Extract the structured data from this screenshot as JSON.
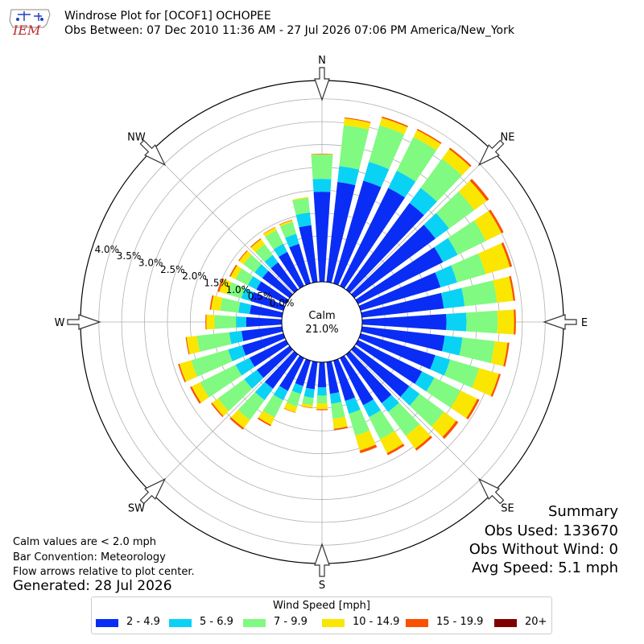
{
  "header": {
    "title": "Windrose Plot for [OCOF1] OCHOPEE",
    "subtitle": "Obs Between: 07 Dec 2010 11:36 AM - 27 Jul 2026 07:06 PM America/New_York",
    "logo_text": "IEM"
  },
  "footnotes": {
    "calm_note": "Calm values are < 2.0 mph",
    "bar_convention": "Bar Convention: Meteorology",
    "flow_note": "Flow arrows relative to plot center.",
    "generated": "Generated: 28 Jul 2026"
  },
  "summary": {
    "heading": "Summary",
    "obs_used": "Obs Used: 133670",
    "obs_without_wind": "Obs Without Wind: 0",
    "avg_speed": "Avg Speed: 5.1 mph"
  },
  "chart_data": {
    "type": "windrose",
    "calm_label": "Calm",
    "calm_value": "21.0%",
    "calm_percent": 21.0,
    "direction_labels": [
      "N",
      "NE",
      "E",
      "SE",
      "S",
      "SW",
      "W",
      "NW"
    ],
    "radial_tick_labels": [
      "0.0%",
      "0.5%",
      "1.0%",
      "1.5%",
      "2.0%",
      "2.5%",
      "3.0%",
      "3.5%",
      "4.0%"
    ],
    "rmax": 4.4,
    "legend_title": "Wind Speed [mph]",
    "bins": [
      {
        "name": "2 - 4.9",
        "color": "#0a2df5"
      },
      {
        "name": "5 - 6.9",
        "color": "#0ad2f5"
      },
      {
        "name": "7 - 9.9",
        "color": "#80fa80"
      },
      {
        "name": "10 - 14.9",
        "color": "#fae600"
      },
      {
        "name": "15 - 19.9",
        "color": "#fa5000"
      },
      {
        "name": "20+",
        "color": "#800000"
      }
    ],
    "directions_deg": [
      0,
      10,
      20,
      30,
      40,
      50,
      60,
      70,
      80,
      90,
      100,
      110,
      120,
      130,
      140,
      150,
      160,
      170,
      180,
      190,
      200,
      210,
      220,
      230,
      240,
      250,
      260,
      270,
      280,
      290,
      300,
      310,
      320,
      330,
      340,
      350
    ],
    "cumulative_percent": [
      [
        1.97,
        2.25,
        2.78,
        2.79,
        2.8,
        2.8
      ],
      [
        2.2,
        2.55,
        3.45,
        3.6,
        3.62,
        3.62
      ],
      [
        2.34,
        2.77,
        3.6,
        3.77,
        3.8,
        3.8
      ],
      [
        2.39,
        2.81,
        3.63,
        3.8,
        3.83,
        3.83
      ],
      [
        2.35,
        2.76,
        3.55,
        3.81,
        3.85,
        3.85
      ],
      [
        2.2,
        2.57,
        3.25,
        3.59,
        3.65,
        3.65
      ],
      [
        2.07,
        2.43,
        3.12,
        3.5,
        3.55,
        3.55
      ],
      [
        1.82,
        2.2,
        2.85,
        3.4,
        3.45,
        3.45
      ],
      [
        1.8,
        2.26,
        2.97,
        3.33,
        3.37,
        3.37
      ],
      [
        1.84,
        2.28,
        2.96,
        3.32,
        3.36,
        3.36
      ],
      [
        1.82,
        2.21,
        2.92,
        3.2,
        3.24,
        3.24
      ],
      [
        1.7,
        2.04,
        2.7,
        3.15,
        3.19,
        3.19
      ],
      [
        1.56,
        1.86,
        2.5,
        2.91,
        2.96,
        2.96
      ],
      [
        1.49,
        1.77,
        2.43,
        2.76,
        2.82,
        2.82
      ],
      [
        1.32,
        1.56,
        2.21,
        2.56,
        2.61,
        2.61
      ],
      [
        1.15,
        1.44,
        1.98,
        2.32,
        2.37,
        2.37
      ],
      [
        0.92,
        1.21,
        1.71,
        2.05,
        2.11,
        2.11
      ],
      [
        0.7,
        0.92,
        1.25,
        1.47,
        1.5,
        1.5
      ],
      [
        0.55,
        0.73,
        0.9,
        1.03,
        1.05,
        1.05
      ],
      [
        0.6,
        0.79,
        0.95,
        1.01,
        1.02,
        1.02
      ],
      [
        0.58,
        0.76,
        1.05,
        1.18,
        1.19,
        1.19
      ],
      [
        0.8,
        1.03,
        1.45,
        1.63,
        1.66,
        1.66
      ],
      [
        0.93,
        1.24,
        1.78,
        2.0,
        2.04,
        2.04
      ],
      [
        0.89,
        1.23,
        1.94,
        2.1,
        2.13,
        2.13
      ],
      [
        0.89,
        1.23,
        2.09,
        2.3,
        2.34,
        2.34
      ],
      [
        0.94,
        1.26,
        2.1,
        2.37,
        2.4,
        2.4
      ],
      [
        0.89,
        1.16,
        1.87,
        2.1,
        2.12,
        2.12
      ],
      [
        0.78,
        1.0,
        1.47,
        1.65,
        1.67,
        1.67
      ],
      [
        0.71,
        0.96,
        1.36,
        1.56,
        1.59,
        1.59
      ],
      [
        0.75,
        0.96,
        1.28,
        1.46,
        1.5,
        1.5
      ],
      [
        0.72,
        0.93,
        1.23,
        1.35,
        1.38,
        1.38
      ],
      [
        0.74,
        0.95,
        1.25,
        1.37,
        1.39,
        1.39
      ],
      [
        0.74,
        0.94,
        1.23,
        1.37,
        1.39,
        1.39
      ],
      [
        0.83,
        1.03,
        1.36,
        1.43,
        1.44,
        1.44
      ],
      [
        0.9,
        1.13,
        1.4,
        1.44,
        1.45,
        1.45
      ],
      [
        1.25,
        1.53,
        1.85,
        1.87,
        1.87,
        1.87
      ]
    ]
  }
}
